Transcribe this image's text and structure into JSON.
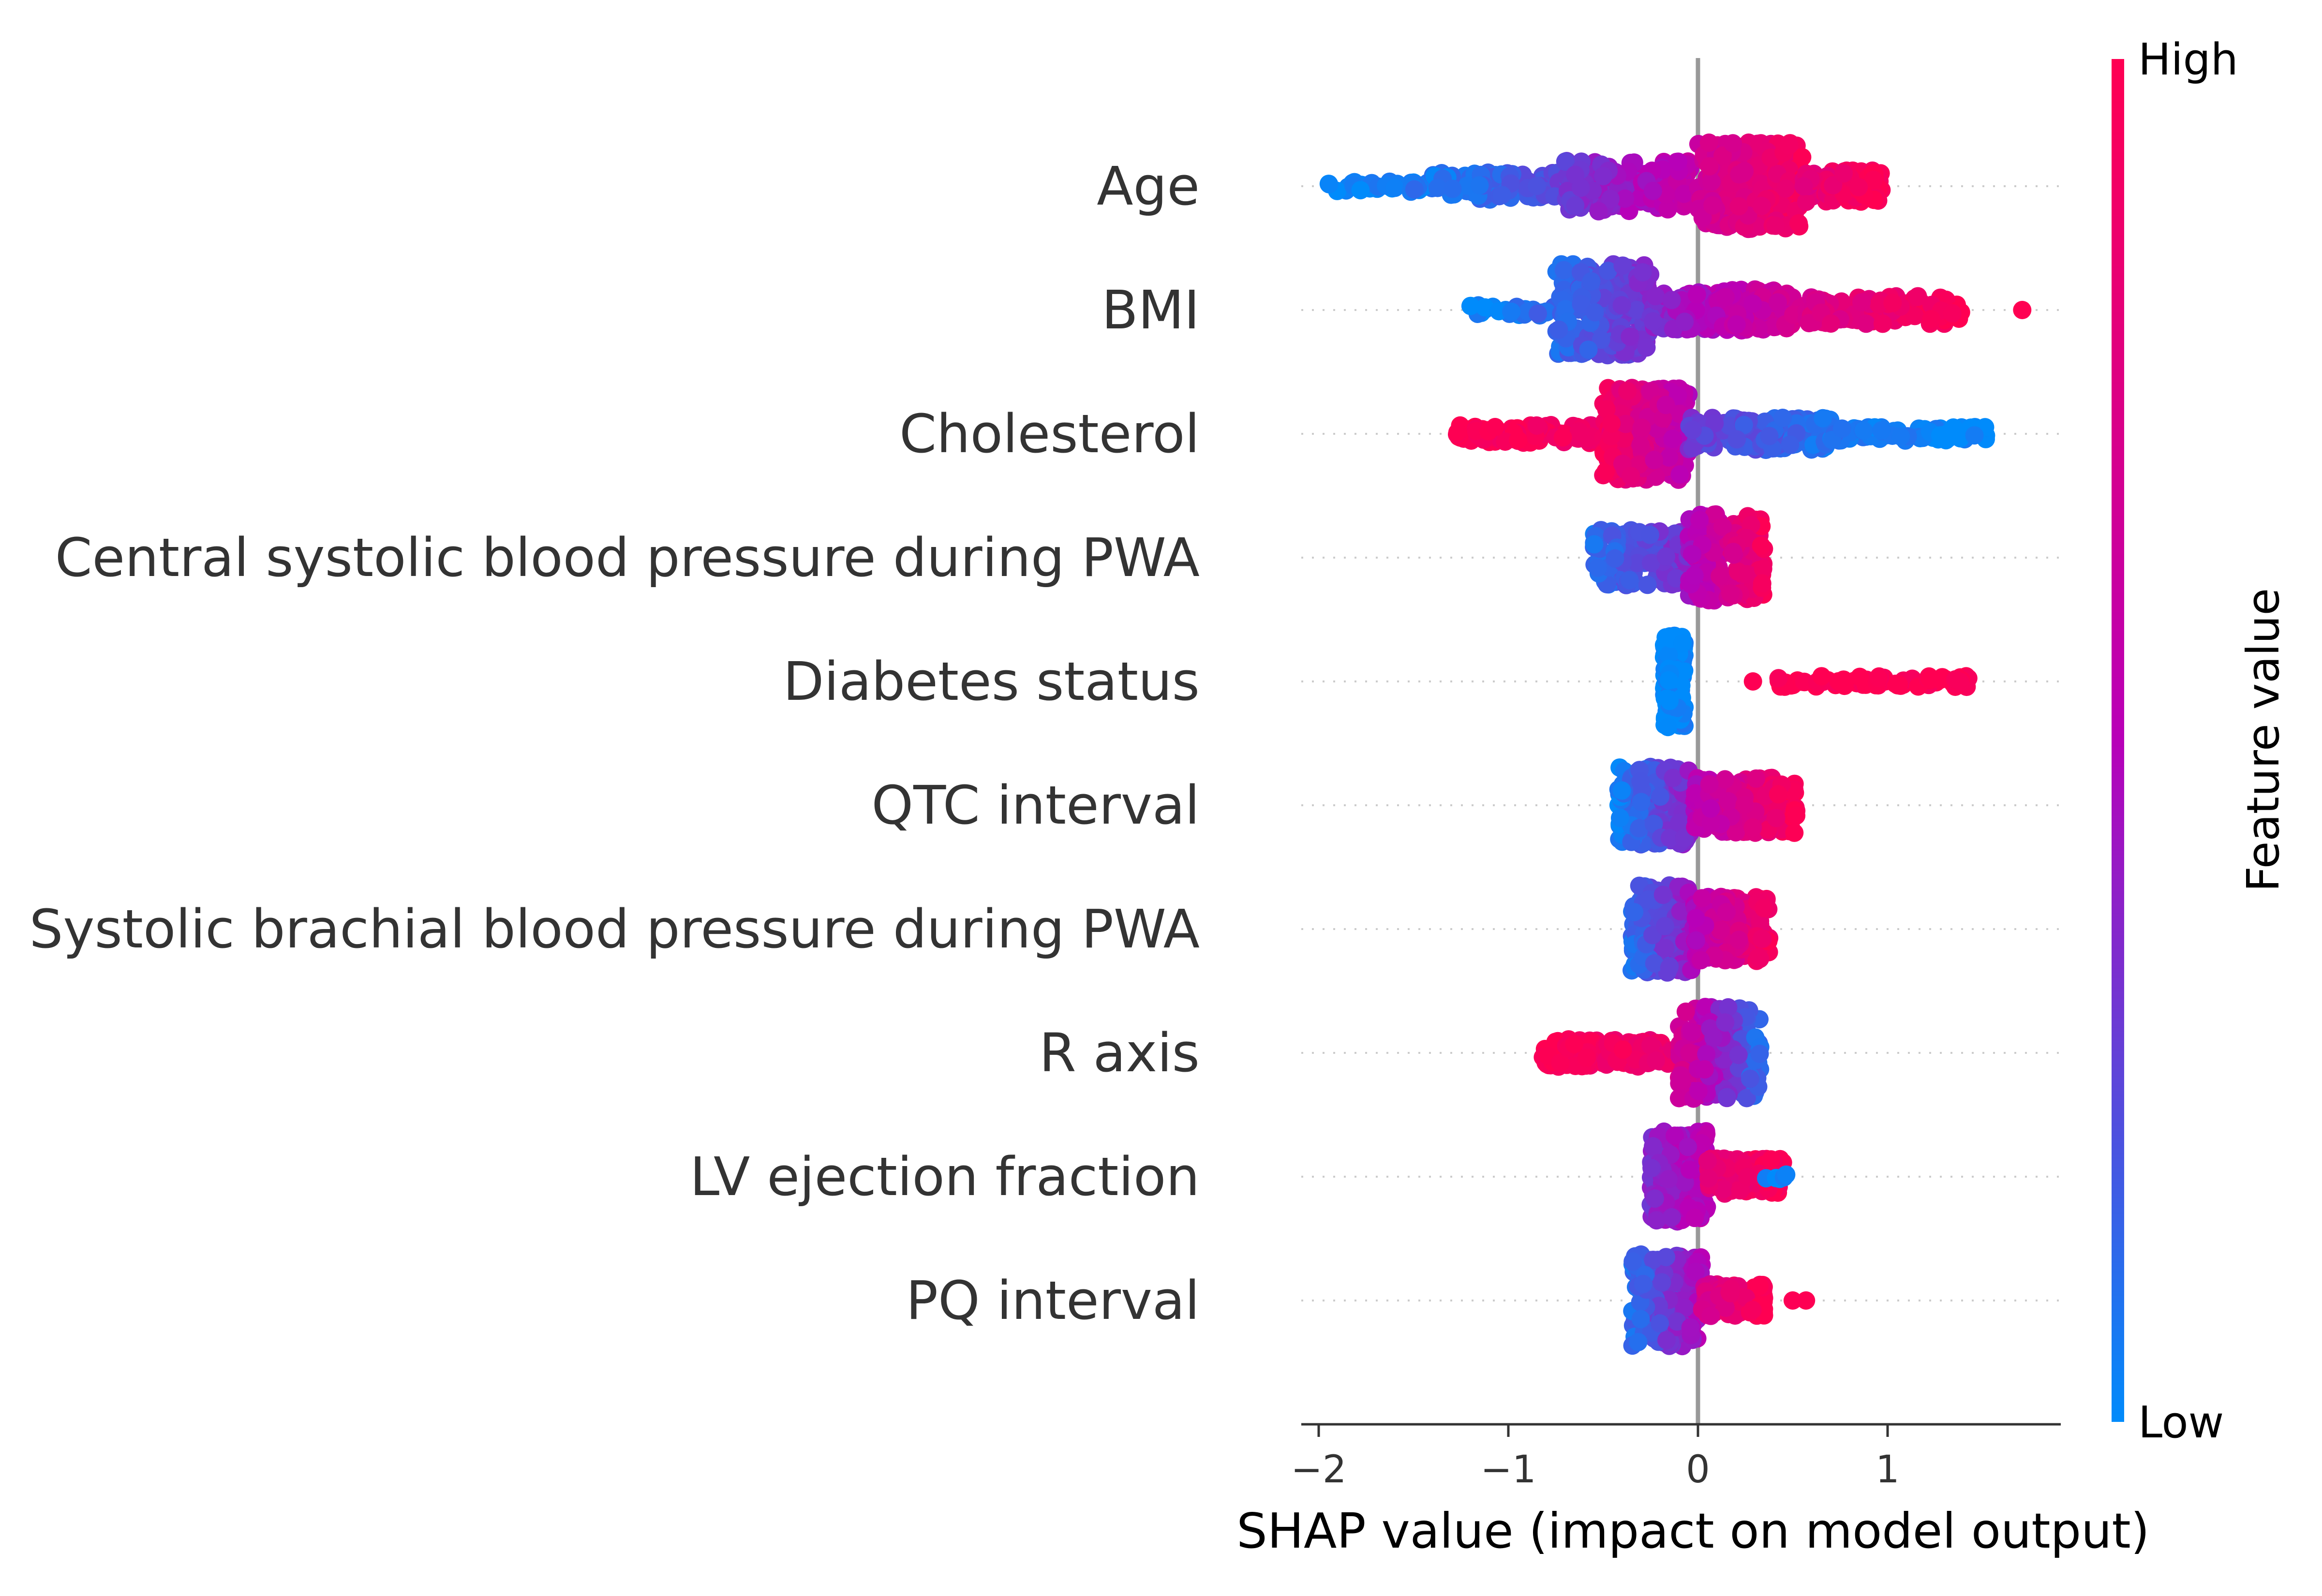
{
  "chart_data": {
    "type": "scatter",
    "subtype": "shap-beeswarm",
    "xlabel": "SHAP value (impact on model output)",
    "xlim": [
      -2.1,
      1.9
    ],
    "xticks": [
      -2,
      -1,
      0,
      1
    ],
    "xtick_labels": [
      "−2",
      "−1",
      "0",
      "1"
    ],
    "colorbar": {
      "title": "Feature value",
      "high_label": "High",
      "low_label": "Low",
      "low_color": "#008bfb",
      "mid_color": "#b800b8",
      "high_color": "#ff0052"
    },
    "features": [
      {
        "name": "Age",
        "segments": [
          {
            "from": -1.95,
            "to": -1.4,
            "n": 40,
            "spread": 0.12,
            "c0": 0.0,
            "c1": 0.08
          },
          {
            "from": -1.4,
            "to": -0.55,
            "n": 110,
            "spread": 0.3,
            "c0": 0.05,
            "c1": 0.3
          },
          {
            "from": -0.7,
            "to": 0.0,
            "n": 150,
            "spread": 0.55,
            "c0": 0.3,
            "c1": 0.6
          },
          {
            "from": 0.0,
            "to": 0.55,
            "n": 260,
            "spread": 0.95,
            "c0": 0.65,
            "c1": 0.95
          },
          {
            "from": 0.55,
            "to": 0.98,
            "n": 70,
            "spread": 0.35,
            "c0": 0.8,
            "c1": 1.0
          }
        ]
      },
      {
        "name": "BMI",
        "segments": [
          {
            "from": -1.2,
            "to": -0.75,
            "n": 25,
            "spread": 0.12,
            "c0": 0.0,
            "c1": 0.15
          },
          {
            "from": -0.75,
            "to": -0.25,
            "n": 230,
            "spread": 1.0,
            "c0": 0.1,
            "c1": 0.35
          },
          {
            "from": -0.25,
            "to": 0.5,
            "n": 170,
            "spread": 0.45,
            "c0": 0.35,
            "c1": 0.7
          },
          {
            "from": 0.5,
            "to": 1.4,
            "n": 110,
            "spread": 0.3,
            "c0": 0.7,
            "c1": 1.0
          },
          {
            "from": 1.7,
            "to": 1.72,
            "n": 1,
            "spread": 0.0,
            "c0": 1.0,
            "c1": 1.0
          }
        ]
      },
      {
        "name": "Cholesterol",
        "segments": [
          {
            "from": -1.3,
            "to": -0.5,
            "n": 90,
            "spread": 0.2,
            "c0": 1.0,
            "c1": 0.9
          },
          {
            "from": -0.5,
            "to": -0.05,
            "n": 240,
            "spread": 1.0,
            "c0": 0.95,
            "c1": 0.5
          },
          {
            "from": -0.05,
            "to": 0.7,
            "n": 160,
            "spread": 0.35,
            "c0": 0.3,
            "c1": 0.08
          },
          {
            "from": 0.7,
            "to": 1.52,
            "n": 80,
            "spread": 0.15,
            "c0": 0.08,
            "c1": 0.0
          }
        ]
      },
      {
        "name": "Central systolic blood pressure during PWA",
        "segments": [
          {
            "from": -0.55,
            "to": -0.05,
            "n": 150,
            "spread": 0.6,
            "c0": 0.1,
            "c1": 0.35
          },
          {
            "from": -0.05,
            "to": 0.35,
            "n": 190,
            "spread": 0.95,
            "c0": 0.45,
            "c1": 0.95
          }
        ]
      },
      {
        "name": "Diabetes status",
        "segments": [
          {
            "from": -0.18,
            "to": -0.07,
            "n": 230,
            "spread": 1.0,
            "c0": 0.0,
            "c1": 0.03
          },
          {
            "from": 0.28,
            "to": 0.3,
            "n": 1,
            "spread": 0.0,
            "c0": 1.0,
            "c1": 1.0
          },
          {
            "from": 0.4,
            "to": 1.45,
            "n": 75,
            "spread": 0.12,
            "c0": 1.0,
            "c1": 1.0
          }
        ]
      },
      {
        "name": "QTC interval",
        "segments": [
          {
            "from": -0.42,
            "to": -0.02,
            "n": 200,
            "spread": 0.85,
            "c0": 0.05,
            "c1": 0.4
          },
          {
            "from": -0.02,
            "to": 0.52,
            "n": 200,
            "spread": 0.6,
            "c0": 0.5,
            "c1": 1.0
          }
        ]
      },
      {
        "name": "Systolic brachial blood pressure during PWA",
        "segments": [
          {
            "from": -0.35,
            "to": -0.02,
            "n": 200,
            "spread": 0.95,
            "c0": 0.1,
            "c1": 0.45
          },
          {
            "from": -0.02,
            "to": 0.38,
            "n": 170,
            "spread": 0.7,
            "c0": 0.5,
            "c1": 0.95
          }
        ]
      },
      {
        "name": "R axis",
        "segments": [
          {
            "from": -0.82,
            "to": -0.1,
            "n": 130,
            "spread": 0.3,
            "c0": 1.0,
            "c1": 0.85
          },
          {
            "from": -0.1,
            "to": 0.33,
            "n": 210,
            "spread": 1.0,
            "c0": 0.7,
            "c1": 0.1
          }
        ]
      },
      {
        "name": "LV ejection fraction",
        "segments": [
          {
            "from": -0.25,
            "to": 0.05,
            "n": 220,
            "spread": 1.0,
            "c0": 0.35,
            "c1": 0.55
          },
          {
            "from": 0.05,
            "to": 0.45,
            "n": 110,
            "spread": 0.4,
            "c0": 0.8,
            "c1": 1.0
          },
          {
            "from": 0.35,
            "to": 0.47,
            "n": 5,
            "spread": 0.05,
            "c0": 0.05,
            "c1": 0.0
          }
        ]
      },
      {
        "name": "PQ interval",
        "segments": [
          {
            "from": -0.35,
            "to": 0.02,
            "n": 220,
            "spread": 1.0,
            "c0": 0.1,
            "c1": 0.5
          },
          {
            "from": 0.02,
            "to": 0.35,
            "n": 100,
            "spread": 0.35,
            "c0": 0.7,
            "c1": 1.0
          },
          {
            "from": 0.47,
            "to": 0.58,
            "n": 2,
            "spread": 0.0,
            "c0": 1.0,
            "c1": 1.0
          }
        ]
      }
    ]
  }
}
